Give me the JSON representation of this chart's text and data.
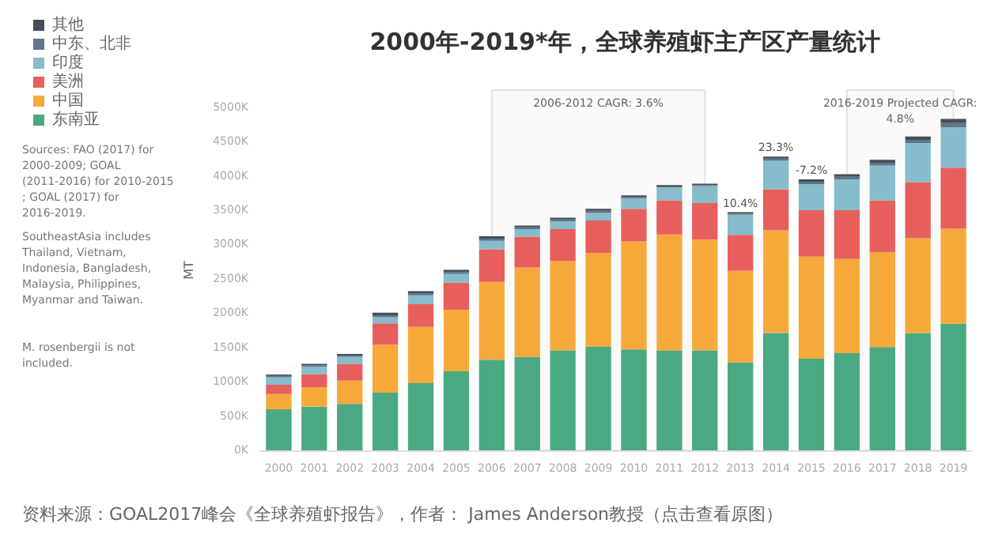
{
  "chart_data": {
    "type": "bar",
    "stacked": true,
    "title": "2000年-2019*年，全球养殖虾主产区产量统计",
    "ylabel": "MT",
    "categories": [
      "2000",
      "2001",
      "2002",
      "2003",
      "2004",
      "2005",
      "2006",
      "2007",
      "2008",
      "2009",
      "2010",
      "2011",
      "2012",
      "2013",
      "2014",
      "2015",
      "2016",
      "2017",
      "2018",
      "2019"
    ],
    "series": [
      {
        "name": "东南亚",
        "color": "#4aa882",
        "values": [
          600,
          635,
          675,
          840,
          980,
          1150,
          1320,
          1360,
          1455,
          1515,
          1470,
          1455,
          1455,
          1280,
          1710,
          1335,
          1415,
          1505,
          1710,
          1845
        ]
      },
      {
        "name": "中国",
        "color": "#f6a93b",
        "values": [
          220,
          285,
          340,
          700,
          820,
          900,
          1135,
          1305,
          1305,
          1360,
          1575,
          1690,
          1615,
          1335,
          1495,
          1490,
          1375,
          1385,
          1380,
          1385
        ]
      },
      {
        "name": "美洲",
        "color": "#e65f5c",
        "values": [
          135,
          190,
          245,
          310,
          330,
          395,
          475,
          450,
          465,
          475,
          475,
          500,
          535,
          525,
          600,
          675,
          710,
          755,
          820,
          890
        ]
      },
      {
        "name": "印度",
        "color": "#86bccb",
        "values": [
          110,
          110,
          100,
          90,
          130,
          125,
          125,
          110,
          115,
          110,
          150,
          185,
          245,
          295,
          415,
          380,
          450,
          505,
          570,
          590
        ]
      },
      {
        "name": "中东、北非",
        "color": "#5f7588",
        "values": [
          20,
          20,
          20,
          30,
          30,
          30,
          30,
          25,
          25,
          30,
          20,
          15,
          15,
          15,
          30,
          35,
          35,
          40,
          45,
          60
        ]
      },
      {
        "name": "其他",
        "color": "#454f59",
        "values": [
          20,
          20,
          25,
          35,
          30,
          30,
          35,
          25,
          25,
          30,
          25,
          20,
          20,
          20,
          30,
          35,
          40,
          45,
          50,
          60
        ]
      }
    ],
    "ylim": [
      0,
      5250
    ],
    "yticks": [
      {
        "value": 0,
        "label": "0K"
      },
      {
        "value": 500,
        "label": "500K"
      },
      {
        "value": 1000,
        "label": "1000K"
      },
      {
        "value": 1500,
        "label": "1500K"
      },
      {
        "value": 2000,
        "label": "2000K"
      },
      {
        "value": 2500,
        "label": "2500K"
      },
      {
        "value": 3000,
        "label": "3000K"
      },
      {
        "value": 3500,
        "label": "3500K"
      },
      {
        "value": 4000,
        "label": "4000K"
      },
      {
        "value": 4500,
        "label": "4500K"
      },
      {
        "value": 5000,
        "label": "5000K"
      }
    ],
    "grid": false,
    "legend": "top left",
    "bands": [
      {
        "axis": "x",
        "from": "2006",
        "to": "2012",
        "label": "2006-2012 CAGR: 3.6%"
      },
      {
        "axis": "x",
        "from": "2016",
        "to": "2019",
        "label": "2016-2019 Projected CAGR:\n4.8%"
      }
    ],
    "annotations": [
      {
        "text": "10.4%",
        "x": "2013",
        "y": 3470
      },
      {
        "text": "23.3%",
        "x": "2014",
        "y": 4280
      },
      {
        "text": "-7.2%",
        "x": "2015",
        "y": 3950
      },
      "Sources: FAO (2017) for 2000-2009; GOAL (2011-2016) for 2010-2015; GOAL (2017) for 2016-2019.",
      "SoutheastAsia includes Thailand, Vietnam, Indonesia, Bangladesh, Malaysia, Philippines, Myanmar and Taiwan.",
      "M. rosenbergii is not included.",
      "资料来源：GOAL2017峰会《全球养殖虾报告》，作者： James Anderson教授（点击查看原图）"
    ]
  }
}
